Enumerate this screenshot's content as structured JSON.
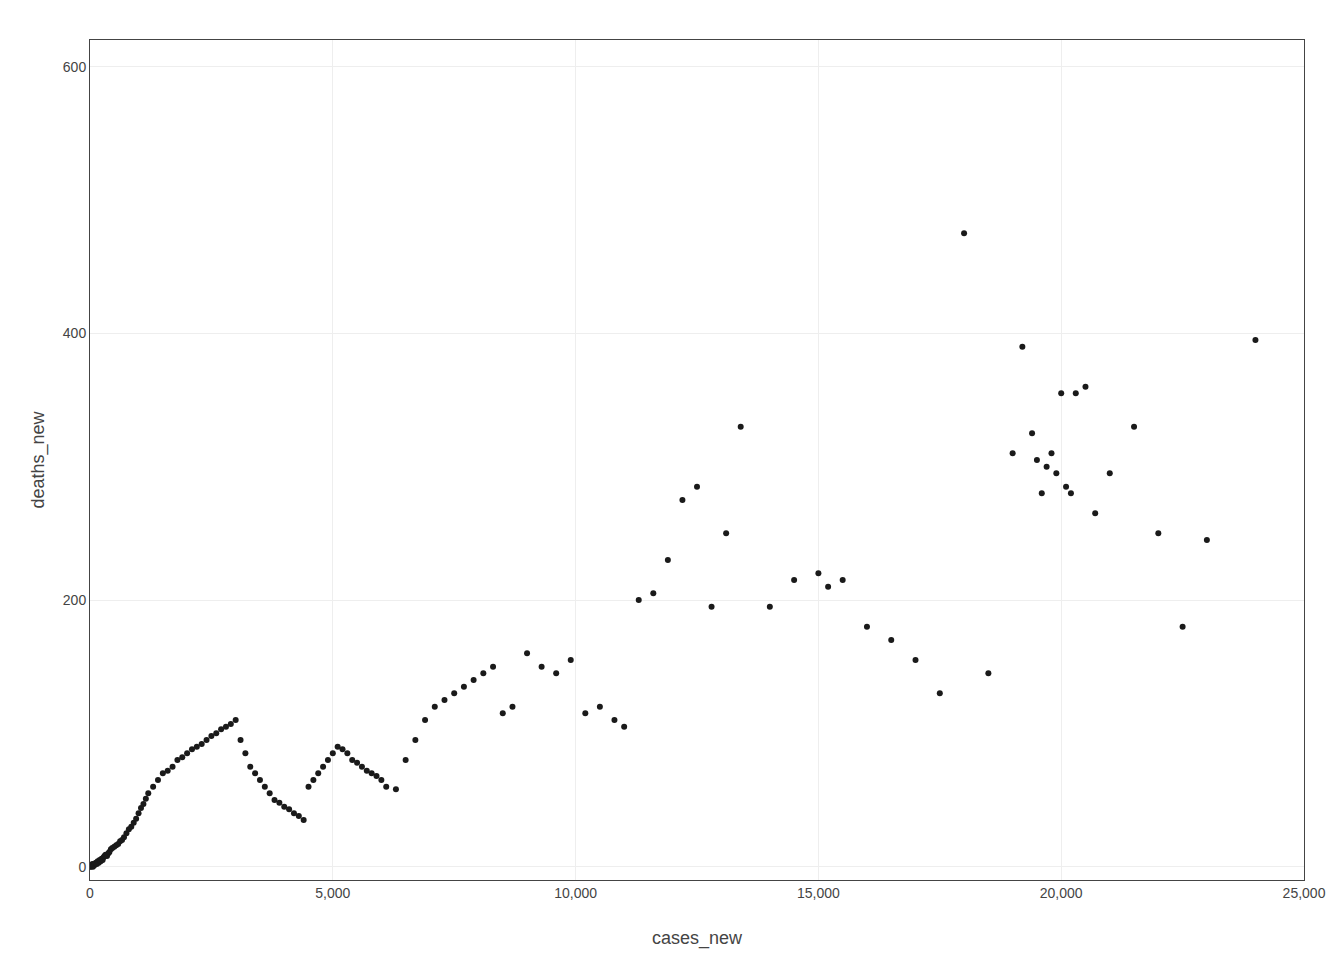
{
  "chart_data": {
    "type": "scatter",
    "x": [
      0,
      12,
      25,
      38,
      50,
      60,
      75,
      90,
      100,
      120,
      140,
      160,
      180,
      200,
      220,
      240,
      260,
      280,
      300,
      320,
      350,
      380,
      400,
      430,
      460,
      500,
      540,
      580,
      620,
      660,
      700,
      750,
      800,
      850,
      900,
      950,
      1000,
      1050,
      1100,
      1150,
      1200,
      1300,
      1400,
      1500,
      1600,
      1700,
      1800,
      1900,
      2000,
      2100,
      2200,
      2300,
      2400,
      2500,
      2600,
      2700,
      2800,
      2900,
      3000,
      3100,
      3200,
      3300,
      3400,
      3500,
      3600,
      3700,
      3800,
      3900,
      4000,
      4100,
      4200,
      4300,
      4400,
      4500,
      4600,
      4700,
      4800,
      4900,
      5000,
      5100,
      5200,
      5300,
      5400,
      5500,
      5600,
      5700,
      5800,
      5900,
      6000,
      6100,
      6300,
      6500,
      6700,
      6900,
      7100,
      7300,
      7500,
      7700,
      7900,
      8100,
      8300,
      8500,
      8700,
      9000,
      9300,
      9600,
      9900,
      10200,
      10500,
      10800,
      11000,
      11300,
      11600,
      11900,
      12200,
      12500,
      12800,
      13100,
      13400,
      14000,
      14500,
      15000,
      15200,
      15500,
      16000,
      16500,
      17000,
      17500,
      18000,
      18500,
      19000,
      19200,
      19400,
      19500,
      19600,
      19700,
      19800,
      19900,
      20000,
      20100,
      20200,
      20300,
      20500,
      20700,
      21000,
      21500,
      22000,
      22500,
      23000,
      24000
    ],
    "values": [
      0,
      1,
      0,
      1,
      2,
      0,
      1,
      1,
      2,
      3,
      2,
      4,
      3,
      5,
      4,
      6,
      5,
      7,
      8,
      9,
      8,
      10,
      11,
      13,
      14,
      15,
      16,
      17,
      19,
      20,
      22,
      25,
      28,
      30,
      33,
      36,
      40,
      44,
      47,
      51,
      55,
      60,
      65,
      70,
      72,
      75,
      80,
      82,
      85,
      88,
      90,
      92,
      95,
      98,
      100,
      103,
      105,
      107,
      110,
      95,
      85,
      75,
      70,
      65,
      60,
      55,
      50,
      48,
      45,
      43,
      40,
      38,
      35,
      60,
      65,
      70,
      75,
      80,
      85,
      90,
      88,
      85,
      80,
      78,
      75,
      72,
      70,
      68,
      65,
      60,
      58,
      80,
      95,
      110,
      120,
      125,
      130,
      135,
      140,
      145,
      150,
      115,
      120,
      160,
      150,
      145,
      155,
      115,
      120,
      110,
      105,
      200,
      205,
      230,
      275,
      285,
      195,
      250,
      330,
      195,
      215,
      220,
      210,
      215,
      180,
      170,
      155,
      130,
      475,
      145,
      310,
      390,
      325,
      305,
      280,
      300,
      310,
      295,
      355,
      285,
      280,
      355,
      360,
      265,
      295,
      330,
      250,
      180,
      245,
      395
    ],
    "xlabel": "cases_new",
    "ylabel": "deaths_new",
    "xlim": [
      0,
      25000
    ],
    "ylim": [
      -10,
      620
    ],
    "xticks": [
      0,
      {
        "value": 5000,
        "label": "5,000"
      },
      {
        "value": 10000,
        "label": "10,000"
      },
      {
        "value": 15000,
        "label": "15,000"
      },
      {
        "value": 20000,
        "label": "20,000"
      },
      {
        "value": 25000,
        "label": "25,000"
      }
    ],
    "yticks": [
      0,
      200,
      400,
      600
    ],
    "grid": true,
    "color": "#1a1a1a"
  }
}
